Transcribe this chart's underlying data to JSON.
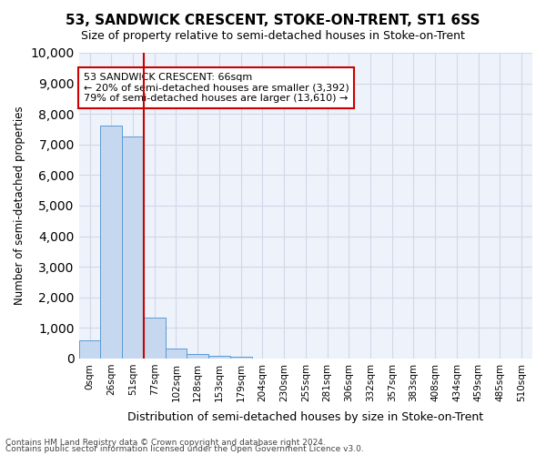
{
  "title": "53, SANDWICK CRESCENT, STOKE-ON-TRENT, ST1 6SS",
  "subtitle": "Size of property relative to semi-detached houses in Stoke-on-Trent",
  "xlabel": "Distribution of semi-detached houses by size in Stoke-on-Trent",
  "ylabel": "Number of semi-detached properties",
  "footer_line1": "Contains HM Land Registry data © Crown copyright and database right 2024.",
  "footer_line2": "Contains public sector information licensed under the Open Government Licence v3.0.",
  "bin_labels": [
    "0sqm",
    "26sqm",
    "51sqm",
    "77sqm",
    "102sqm",
    "128sqm",
    "153sqm",
    "179sqm",
    "204sqm",
    "230sqm",
    "255sqm",
    "281sqm",
    "306sqm",
    "332sqm",
    "357sqm",
    "383sqm",
    "408sqm",
    "434sqm",
    "459sqm",
    "485sqm",
    "510sqm"
  ],
  "bar_values": [
    600,
    7630,
    7250,
    1350,
    320,
    150,
    80,
    60,
    0,
    0,
    0,
    0,
    0,
    0,
    0,
    0,
    0,
    0,
    0,
    0,
    0
  ],
  "bar_color": "#c5d8f0",
  "bar_edge_color": "#5b9bd5",
  "grid_color": "#d0d8e8",
  "background_color": "#eef2fa",
  "red_line_x": 2,
  "annotation_title": "53 SANDWICK CRESCENT: 66sqm",
  "annotation_line2": "← 20% of semi-detached houses are smaller (3,392)",
  "annotation_line3": "79% of semi-detached houses are larger (13,610) →",
  "annotation_box_color": "#ffffff",
  "annotation_box_edge": "#cc0000",
  "red_line_color": "#cc0000",
  "ylim": [
    0,
    10000
  ],
  "yticks": [
    0,
    1000,
    2000,
    3000,
    4000,
    5000,
    6000,
    7000,
    8000,
    9000,
    10000
  ]
}
